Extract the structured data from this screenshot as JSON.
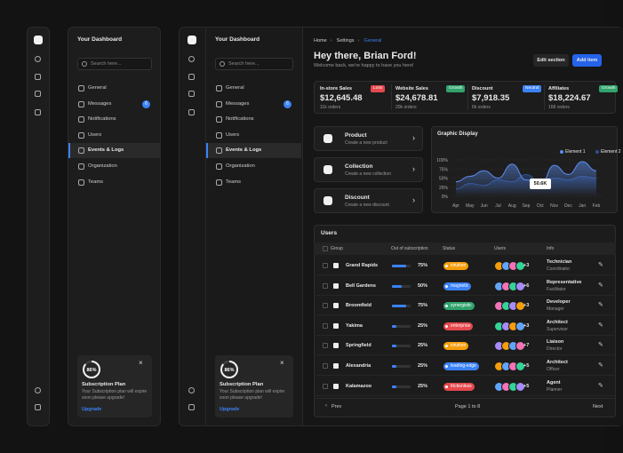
{
  "sidebar": {
    "title": "Your Dashboard",
    "search": "Search here...",
    "menu": [
      {
        "label": "General"
      },
      {
        "label": "Messages",
        "badge": 6
      },
      {
        "label": "Notifications"
      },
      {
        "label": "Users"
      },
      {
        "label": "Events & Logs",
        "active": true
      },
      {
        "label": "Organization"
      },
      {
        "label": "Teams"
      }
    ],
    "subscription": {
      "percent": 86,
      "percent_label": "86%",
      "title": "Subscription Plan",
      "text": "Your Subscription plan will expire soon please upgrade!",
      "action": "Upgrade"
    }
  },
  "breadcrumb": [
    "Home",
    "Settings",
    "General"
  ],
  "header": {
    "title": "Hey there, Brian Ford!",
    "subtitle": "Welcome back, we're happy to have you here!"
  },
  "buttons": [
    "Edit section",
    "Add item"
  ],
  "stats": [
    {
      "label": "In-store Sales",
      "value": "$12,645.48",
      "badge": "Loss",
      "badge_color": "#e5484d",
      "note": "11k orders"
    },
    {
      "label": "Website Sales",
      "value": "$24,678.81",
      "badge": "Growth",
      "badge_color": "#30a46c",
      "note": "20k orders"
    },
    {
      "label": "Discount",
      "value": "$7,918.35",
      "badge": "Neutral",
      "badge_color": "#3b82f6",
      "note": "6k orders"
    },
    {
      "label": "Affiliates",
      "value": "$18,224.67",
      "badge": "Growth",
      "badge_color": "#30a46c",
      "note": "168 orders"
    }
  ],
  "actions": [
    {
      "title": "Product",
      "subtitle": "Create a new product"
    },
    {
      "title": "Collection",
      "subtitle": "Create a new collection"
    },
    {
      "title": "Discount",
      "subtitle": "Create a new discount"
    }
  ],
  "graphic": {
    "title": "Graphic Display",
    "categories": [
      "Apr",
      "May",
      "Jun",
      "Jul",
      "Aug",
      "Sep",
      "Oct",
      "Nov",
      "Dec",
      "Jan",
      "Feb"
    ],
    "series": [
      {
        "name": "Element 1",
        "color": "#5b8def",
        "values": [
          40,
          55,
          70,
          50,
          88,
          45,
          30,
          85,
          60,
          95,
          70
        ]
      },
      {
        "name": "Element 2",
        "color": "#2f4f8f",
        "values": [
          20,
          35,
          30,
          45,
          40,
          60,
          40,
          50,
          45,
          55,
          50
        ]
      }
    ],
    "ylim": [
      0,
      100
    ],
    "yticks": [
      {
        "value": 100,
        "label": "100%"
      },
      {
        "value": 75,
        "label": "75%"
      },
      {
        "value": 50,
        "label": "50%"
      },
      {
        "value": 25,
        "label": "25%"
      },
      {
        "value": 0,
        "label": "0%"
      }
    ],
    "grid": true,
    "tooltip": "50.6K"
  },
  "users": {
    "title": "Users",
    "columns": [
      "Group",
      "Out of subscription",
      "Status",
      "Users",
      "Info"
    ],
    "rows": [
      {
        "group": "Grand Rapids",
        "progress": 75,
        "progress_label": "75%",
        "status": "intuition",
        "status_color": "#f59e0b",
        "extra": "+3",
        "role": "Technician",
        "level": "Coordinator"
      },
      {
        "group": "Bell Gardens",
        "progress": 50,
        "progress_label": "50%",
        "status": "magnetic",
        "status_color": "#3b82f6",
        "extra": "+6",
        "role": "Representative",
        "level": "Facilitator"
      },
      {
        "group": "Broomfield",
        "progress": 75,
        "progress_label": "75%",
        "status": "synergistic",
        "status_color": "#30a46c",
        "extra": "+3",
        "role": "Developer",
        "level": "Manager"
      },
      {
        "group": "Yakima",
        "progress": 25,
        "progress_label": "25%",
        "status": "enterprise",
        "status_color": "#e5484d",
        "extra": "+3",
        "role": "Architect",
        "level": "Supervisor"
      },
      {
        "group": "Springfield",
        "progress": 25,
        "progress_label": "25%",
        "status": "intuition",
        "status_color": "#f59e0b",
        "extra": "+7",
        "role": "Liaison",
        "level": "Director"
      },
      {
        "group": "Alexandria",
        "progress": 25,
        "progress_label": "25%",
        "status": "leading-edge",
        "status_color": "#3b82f6",
        "extra": "+5",
        "role": "Architect",
        "level": "Officer"
      },
      {
        "group": "Kalamazoo",
        "progress": 25,
        "progress_label": "25%",
        "status": "frictionless",
        "status_color": "#e5484d",
        "extra": "+5",
        "role": "Agent",
        "level": "Planner"
      }
    ],
    "footer": {
      "prev": "Prev",
      "page": "Page 1 to 8",
      "next": "Next"
    }
  }
}
